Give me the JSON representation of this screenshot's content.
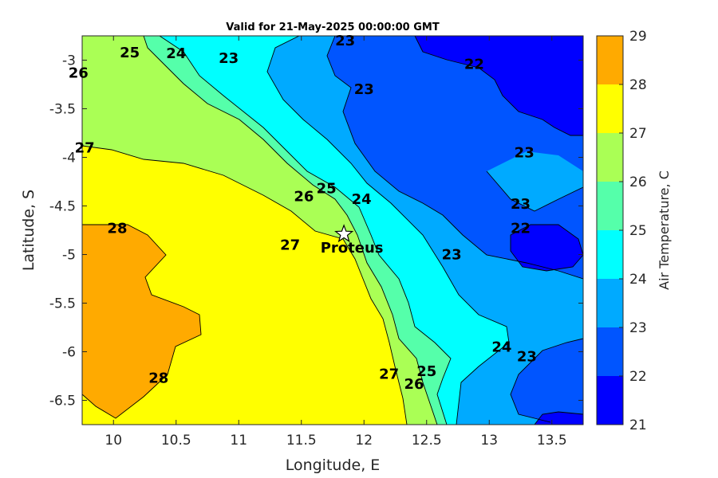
{
  "chart_data": {
    "type": "contour",
    "title": "Valid for 21-May-2025 00:00:00 GMT",
    "xlabel": "Longitude, E",
    "ylabel": "Latitude, S",
    "xlim": [
      9.75,
      13.75
    ],
    "ylim": [
      -6.75,
      -2.75
    ],
    "x_ticks": [
      "10",
      "10.5",
      "11",
      "11.5",
      "12",
      "12.5",
      "13",
      "13.5"
    ],
    "y_ticks": [
      "-3",
      "-3.5",
      "-4",
      "-4.5",
      "-5",
      "-5.5",
      "-6",
      "-6.5"
    ],
    "colorbar": {
      "label": "Air Temperature, C",
      "levels": [
        21,
        22,
        23,
        24,
        25,
        26,
        27,
        28,
        29
      ],
      "colors": [
        "#0000ff",
        "#0055ff",
        "#00aaff",
        "#00ffff",
        "#55ffaa",
        "#aaff55",
        "#ffff00",
        "#ffaa00",
        "#ff5500"
      ]
    },
    "contour_labels": [
      {
        "text": "25",
        "lon": 10.13,
        "lat": -2.97
      },
      {
        "text": "24",
        "lon": 10.5,
        "lat": -2.98
      },
      {
        "text": "23",
        "lon": 10.92,
        "lat": -3.03
      },
      {
        "text": "23",
        "lon": 11.85,
        "lat": -2.85
      },
      {
        "text": "22",
        "lon": 12.88,
        "lat": -3.09
      },
      {
        "text": "26",
        "lon": 9.72,
        "lat": -3.18
      },
      {
        "text": "23",
        "lon": 12.0,
        "lat": -3.35
      },
      {
        "text": "27",
        "lon": 9.77,
        "lat": -3.95
      },
      {
        "text": "23",
        "lon": 13.28,
        "lat": -4.0
      },
      {
        "text": "25",
        "lon": 11.7,
        "lat": -4.37
      },
      {
        "text": "26",
        "lon": 11.52,
        "lat": -4.45
      },
      {
        "text": "24",
        "lon": 11.98,
        "lat": -4.48
      },
      {
        "text": "23",
        "lon": 13.25,
        "lat": -4.53
      },
      {
        "text": "28",
        "lon": 10.03,
        "lat": -4.78
      },
      {
        "text": "22",
        "lon": 13.25,
        "lat": -4.78
      },
      {
        "text": "27",
        "lon": 11.41,
        "lat": -4.95
      },
      {
        "text": "23",
        "lon": 12.7,
        "lat": -5.05
      },
      {
        "text": "24",
        "lon": 13.1,
        "lat": -6.0
      },
      {
        "text": "23",
        "lon": 13.3,
        "lat": -6.1
      },
      {
        "text": "27",
        "lon": 12.2,
        "lat": -6.28
      },
      {
        "text": "25",
        "lon": 12.5,
        "lat": -6.25
      },
      {
        "text": "26",
        "lon": 12.4,
        "lat": -6.38
      },
      {
        "text": "28",
        "lon": 10.36,
        "lat": -6.32
      }
    ],
    "markers": [
      {
        "name": "Proteus",
        "lon": 11.84,
        "lat": -4.79,
        "symbol": "star"
      }
    ]
  }
}
